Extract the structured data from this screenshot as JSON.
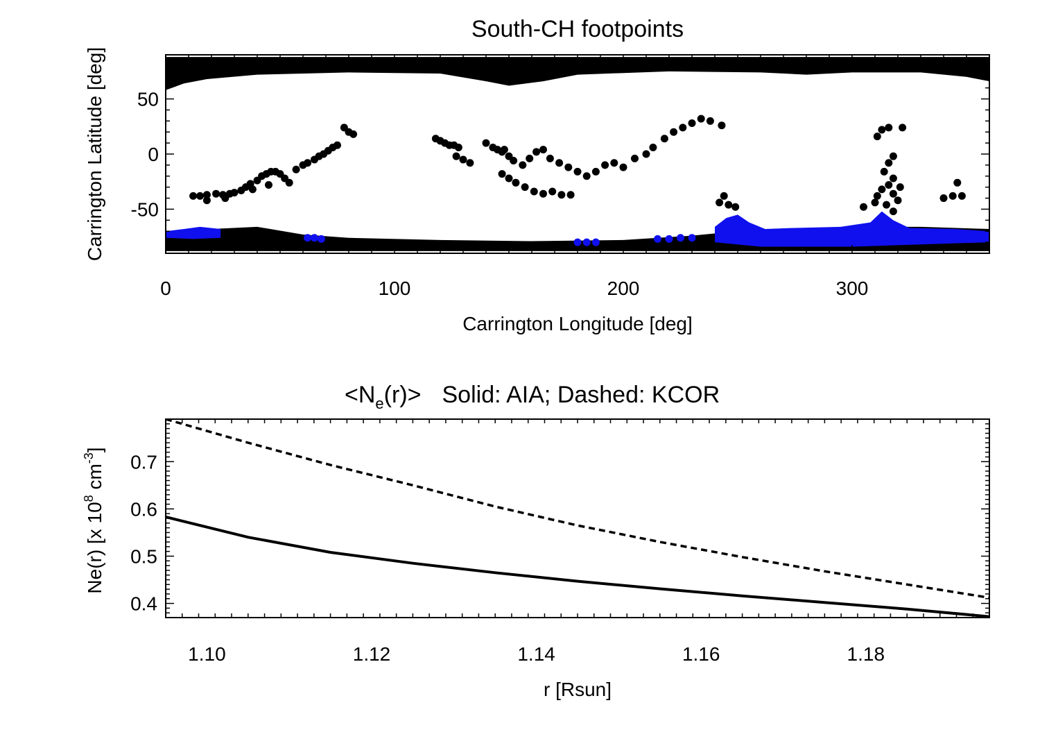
{
  "chart_data": [
    {
      "type": "scatter",
      "title": "South-CH footpoints",
      "xlabel": "Carrington Longitude [deg]",
      "ylabel": "Carrington Latitude [deg]",
      "xlim": [
        0,
        360
      ],
      "ylim": [
        -90,
        90
      ],
      "x_ticks": [
        0,
        100,
        200,
        300
      ],
      "y_ticks": [
        50,
        0,
        -50
      ],
      "grid": false,
      "colors": {
        "footpoints": "#000000",
        "highlighted": "#1010ee"
      },
      "regions": {
        "north_cap": [
          [
            0,
            58
          ],
          [
            8,
            64
          ],
          [
            18,
            68
          ],
          [
            40,
            72
          ],
          [
            80,
            74
          ],
          [
            120,
            73
          ],
          [
            140,
            66
          ],
          [
            150,
            62
          ],
          [
            165,
            66
          ],
          [
            180,
            72
          ],
          [
            220,
            75
          ],
          [
            260,
            74
          ],
          [
            280,
            72
          ],
          [
            300,
            74
          ],
          [
            330,
            74
          ],
          [
            350,
            70
          ],
          [
            360,
            66
          ],
          [
            360,
            88
          ],
          [
            0,
            88
          ]
        ],
        "south_cap": [
          [
            0,
            -70
          ],
          [
            20,
            -68
          ],
          [
            40,
            -66
          ],
          [
            60,
            -73
          ],
          [
            80,
            -76
          ],
          [
            120,
            -78
          ],
          [
            160,
            -79
          ],
          [
            200,
            -78
          ],
          [
            230,
            -74
          ],
          [
            250,
            -70
          ],
          [
            270,
            -68
          ],
          [
            300,
            -66
          ],
          [
            330,
            -66
          ],
          [
            360,
            -68
          ],
          [
            360,
            -88
          ],
          [
            0,
            -88
          ]
        ],
        "south_ch_highlight": [
          [
            240,
            -66
          ],
          [
            245,
            -58
          ],
          [
            250,
            -55
          ],
          [
            255,
            -62
          ],
          [
            262,
            -68
          ],
          [
            275,
            -67
          ],
          [
            295,
            -66
          ],
          [
            308,
            -62
          ],
          [
            313,
            -52
          ],
          [
            318,
            -60
          ],
          [
            325,
            -67
          ],
          [
            345,
            -68
          ],
          [
            360,
            -70
          ],
          [
            360,
            -80
          ],
          [
            330,
            -82
          ],
          [
            300,
            -84
          ],
          [
            260,
            -84
          ],
          [
            240,
            -80
          ]
        ],
        "south_ch_highlight_west": [
          [
            0,
            -70
          ],
          [
            8,
            -68
          ],
          [
            15,
            -66
          ],
          [
            24,
            -68
          ],
          [
            24,
            -76
          ],
          [
            12,
            -77
          ],
          [
            0,
            -76
          ]
        ]
      },
      "black_points": [
        [
          12,
          -38
        ],
        [
          15,
          -38
        ],
        [
          18,
          -37
        ],
        [
          22,
          -36
        ],
        [
          25,
          -37
        ],
        [
          28,
          -36
        ],
        [
          30,
          -35
        ],
        [
          33,
          -33
        ],
        [
          35,
          -30
        ],
        [
          37,
          -27
        ],
        [
          40,
          -24
        ],
        [
          42,
          -20
        ],
        [
          44,
          -18
        ],
        [
          46,
          -16
        ],
        [
          48,
          -16
        ],
        [
          50,
          -18
        ],
        [
          52,
          -22
        ],
        [
          54,
          -26
        ],
        [
          45,
          -28
        ],
        [
          38,
          -32
        ],
        [
          26,
          -40
        ],
        [
          18,
          -42
        ],
        [
          57,
          -14
        ],
        [
          60,
          -10
        ],
        [
          62,
          -8
        ],
        [
          65,
          -5
        ],
        [
          67,
          -2
        ],
        [
          69,
          0
        ],
        [
          71,
          3
        ],
        [
          73,
          6
        ],
        [
          75,
          8
        ],
        [
          78,
          24
        ],
        [
          80,
          20
        ],
        [
          82,
          18
        ],
        [
          118,
          14
        ],
        [
          120,
          12
        ],
        [
          122,
          10
        ],
        [
          124,
          8
        ],
        [
          126,
          8
        ],
        [
          128,
          6
        ],
        [
          127,
          -2
        ],
        [
          130,
          -5
        ],
        [
          133,
          -8
        ],
        [
          140,
          10
        ],
        [
          143,
          6
        ],
        [
          145,
          4
        ],
        [
          147,
          2
        ],
        [
          148,
          4
        ],
        [
          150,
          -2
        ],
        [
          152,
          -6
        ],
        [
          147,
          -18
        ],
        [
          150,
          -22
        ],
        [
          153,
          -26
        ],
        [
          157,
          -30
        ],
        [
          161,
          -34
        ],
        [
          165,
          -36
        ],
        [
          169,
          -34
        ],
        [
          173,
          -37
        ],
        [
          177,
          -37
        ],
        [
          156,
          -10
        ],
        [
          159,
          -4
        ],
        [
          162,
          2
        ],
        [
          165,
          4
        ],
        [
          168,
          -4
        ],
        [
          172,
          -8
        ],
        [
          176,
          -12
        ],
        [
          180,
          -16
        ],
        [
          184,
          -20
        ],
        [
          188,
          -16
        ],
        [
          192,
          -10
        ],
        [
          196,
          -8
        ],
        [
          200,
          -12
        ],
        [
          205,
          -4
        ],
        [
          210,
          0
        ],
        [
          213,
          6
        ],
        [
          218,
          14
        ],
        [
          222,
          20
        ],
        [
          226,
          24
        ],
        [
          230,
          28
        ],
        [
          234,
          32
        ],
        [
          238,
          30
        ],
        [
          243,
          26
        ],
        [
          242,
          -44
        ],
        [
          244,
          -38
        ],
        [
          246,
          -46
        ],
        [
          249,
          -48
        ],
        [
          305,
          -48
        ],
        [
          310,
          -44
        ],
        [
          315,
          -46
        ],
        [
          318,
          -52
        ],
        [
          311,
          -38
        ],
        [
          313,
          -32
        ],
        [
          316,
          -28
        ],
        [
          318,
          -22
        ],
        [
          314,
          -16
        ],
        [
          316,
          -8
        ],
        [
          318,
          -2
        ],
        [
          311,
          16
        ],
        [
          313,
          22
        ],
        [
          316,
          24
        ],
        [
          322,
          24
        ],
        [
          321,
          -30
        ],
        [
          318,
          -36
        ],
        [
          320,
          -42
        ],
        [
          340,
          -40
        ],
        [
          344,
          -38
        ],
        [
          348,
          -38
        ],
        [
          346,
          -26
        ]
      ],
      "blue_points": [
        [
          62,
          -76
        ],
        [
          65,
          -76
        ],
        [
          68,
          -77
        ],
        [
          180,
          -80
        ],
        [
          184,
          -80
        ],
        [
          188,
          -80
        ],
        [
          215,
          -77
        ],
        [
          220,
          -77
        ],
        [
          225,
          -76
        ],
        [
          230,
          -76
        ]
      ]
    },
    {
      "type": "line",
      "title_main": "<N",
      "title_sub": "e",
      "title_after": "(r)>",
      "title_rest": "Solid: AIA; Dashed: KCOR",
      "xlabel": "r [Rsun]",
      "ylabel_prefix": "Ne(r) [x 10",
      "ylabel_exp1": "8",
      "ylabel_mid": " cm",
      "ylabel_exp2": "-3",
      "ylabel_suffix": "]",
      "xlim": [
        1.095,
        1.195
      ],
      "ylim": [
        0.37,
        0.79
      ],
      "x_ticks": [
        "1.10",
        "1.12",
        "1.14",
        "1.16",
        "1.18"
      ],
      "y_ticks": [
        "0.7",
        "0.6",
        "0.5",
        "0.4"
      ],
      "grid": false,
      "x": [
        1.095,
        1.105,
        1.115,
        1.125,
        1.135,
        1.145,
        1.155,
        1.165,
        1.175,
        1.185,
        1.195
      ],
      "series": [
        {
          "name": "AIA",
          "style": "solid",
          "values": [
            0.583,
            0.54,
            0.508,
            0.485,
            0.465,
            0.447,
            0.431,
            0.416,
            0.402,
            0.388,
            0.372
          ]
        },
        {
          "name": "KCOR",
          "style": "dashed",
          "values": [
            0.79,
            0.74,
            0.693,
            0.65,
            0.605,
            0.565,
            0.53,
            0.498,
            0.468,
            0.44,
            0.412
          ]
        }
      ]
    }
  ]
}
